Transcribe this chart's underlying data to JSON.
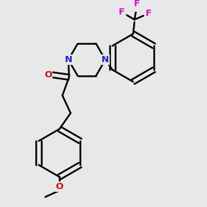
{
  "bg_color": "#e8e8e8",
  "bond_color": "#000000",
  "N_color": "#2222cc",
  "O_color": "#cc1111",
  "F_color": "#cc11cc",
  "lw": 1.8,
  "figsize": [
    3.0,
    3.0
  ],
  "dpi": 100,
  "xlim": [
    0.5,
    3.5
  ],
  "ylim": [
    0.4,
    3.4
  ]
}
